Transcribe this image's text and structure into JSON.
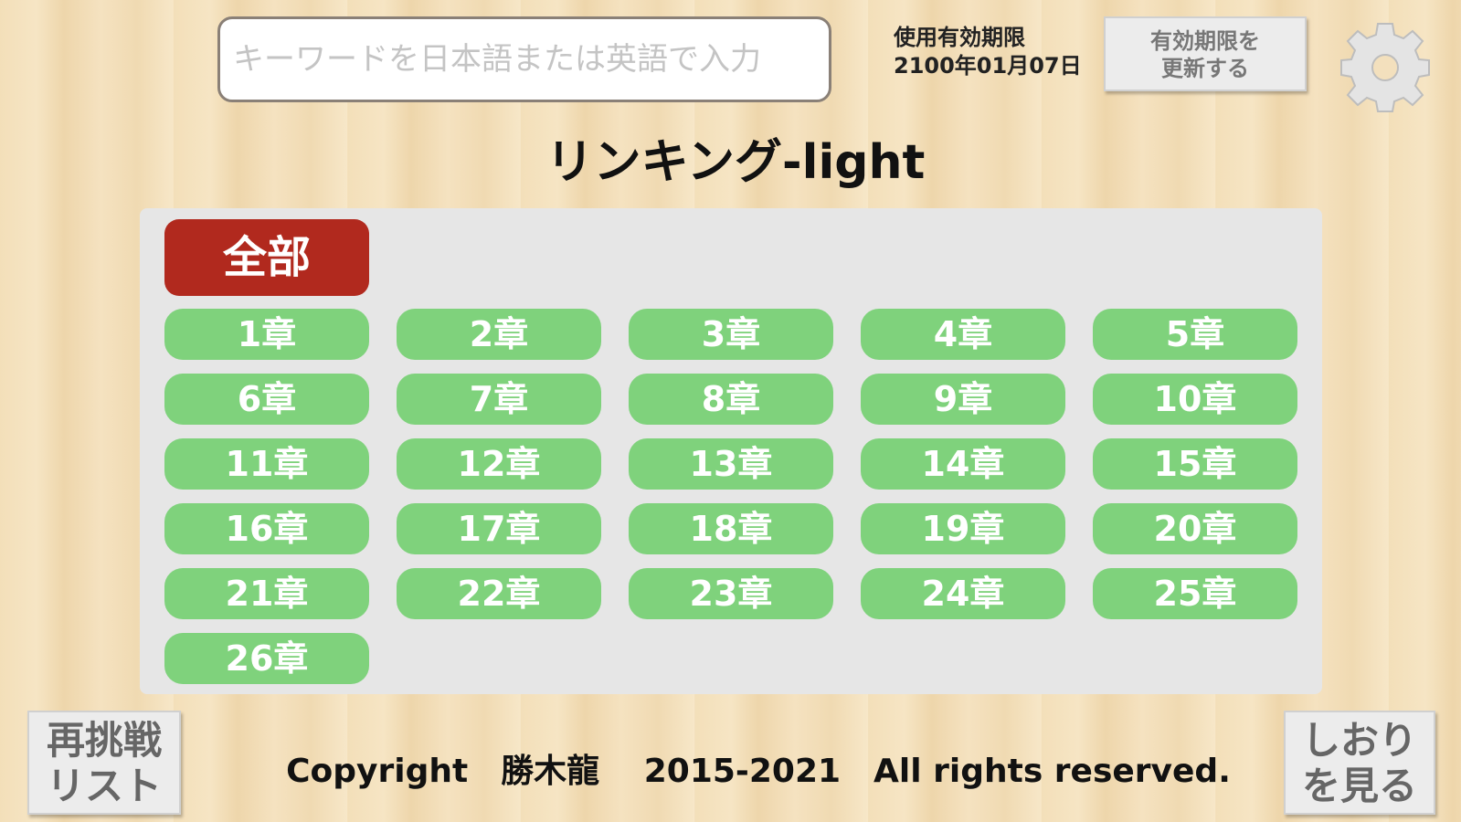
{
  "search": {
    "placeholder": "キーワードを日本語または英語で入力"
  },
  "expiry": {
    "label": "使用有効期限",
    "date": "2100年01月07日"
  },
  "renew_button": {
    "lines": [
      "有効期限を",
      "更新する"
    ]
  },
  "title": "リンキング-light",
  "all_button": "全部",
  "chapters": [
    "1章",
    "2章",
    "3章",
    "4章",
    "5章",
    "6章",
    "7章",
    "8章",
    "9章",
    "10章",
    "11章",
    "12章",
    "13章",
    "14章",
    "15章",
    "16章",
    "17章",
    "18章",
    "19章",
    "20章",
    "21章",
    "22章",
    "23章",
    "24章",
    "25章",
    "26章"
  ],
  "retry_button": {
    "lines": [
      "再挑戦",
      "リスト"
    ]
  },
  "bookmark_button": {
    "lines": [
      "しおり",
      "を見る"
    ]
  },
  "copyright": "Copyright　勝木龍　 2015-2021　All rights reserved."
}
